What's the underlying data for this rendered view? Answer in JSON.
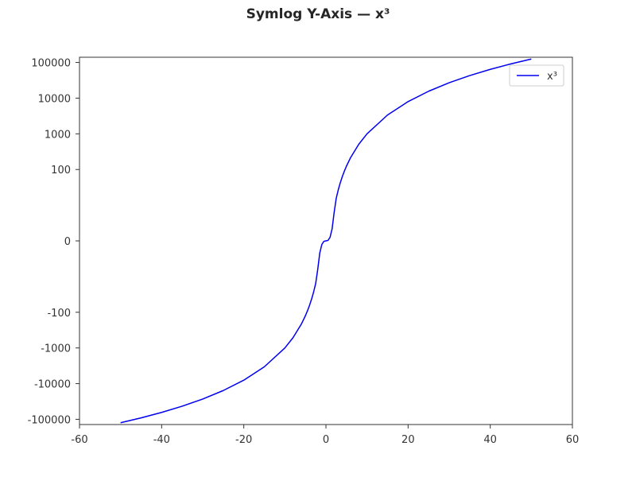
{
  "chart_data": {
    "type": "line",
    "title": "Symlog Y-Axis — x³",
    "xlabel": "",
    "ylabel": "",
    "xlim": [
      -60,
      60
    ],
    "yscale": "symlog",
    "ylim": [
      -140000,
      140000
    ],
    "x_ticks": [
      -60,
      -40,
      -20,
      0,
      20,
      40,
      60
    ],
    "x_tick_labels": [
      "-60",
      "-40",
      "-20",
      "0",
      "20",
      "40",
      "60"
    ],
    "y_ticks": [
      -100000,
      -10000,
      -1000,
      -100,
      0,
      100,
      1000,
      10000,
      100000
    ],
    "y_tick_labels": [
      "-100000",
      "-10000",
      "-1000",
      "-100",
      "0",
      "100",
      "1000",
      "10000",
      "100000"
    ],
    "grid": false,
    "legend": "top-right",
    "series": [
      {
        "name": "x³",
        "color": "#0000ee",
        "function": "x^3",
        "x": [
          -50,
          -45,
          -40,
          -35,
          -30,
          -25,
          -20,
          -15,
          -10,
          -8,
          -6,
          -5,
          -4.5,
          -4,
          -3.5,
          -3,
          -2.5,
          -2,
          -1.5,
          -1,
          -0.5,
          0,
          0.5,
          1,
          1.5,
          2,
          2.5,
          3,
          3.5,
          4,
          4.5,
          5,
          6,
          8,
          10,
          15,
          20,
          25,
          30,
          35,
          40,
          45,
          50
        ],
        "y": [
          -125000,
          -91125,
          -64000,
          -42875,
          -27000,
          -15625,
          -8000,
          -3375,
          -1000,
          -512,
          -216,
          -125,
          -91.125,
          -64,
          -42.875,
          -27,
          -15.625,
          -8,
          -3.375,
          -1,
          -0.125,
          0,
          0.125,
          1,
          3.375,
          8,
          15.625,
          27,
          42.875,
          64,
          91.125,
          125,
          216,
          512,
          1000,
          3375,
          8000,
          15625,
          27000,
          42875,
          64000,
          91125,
          125000
        ]
      }
    ]
  }
}
